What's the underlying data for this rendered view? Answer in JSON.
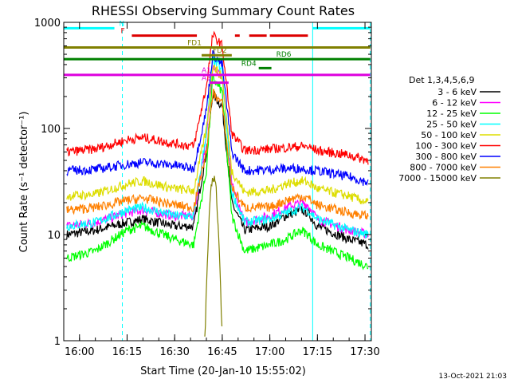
{
  "chart_data": {
    "type": "line",
    "title": "RHESSI Observing Summary Count Rates",
    "xlabel": "Start Time (20-Jan-10 15:55:02)",
    "ylabel": "Count Rate (s⁻¹ detector⁻¹)",
    "y_scale": "log",
    "ylim": [
      1,
      1000
    ],
    "xlim": [
      "15:55:02",
      "17:32:00"
    ],
    "x_ticks": [
      "16:00",
      "16:15",
      "16:30",
      "16:45",
      "17:00",
      "17:15",
      "17:30"
    ],
    "y_ticks": [
      "1",
      "10",
      "100",
      "1000"
    ],
    "legend_title": "Det 1,3,4,5,6,9",
    "legend_position": "right",
    "grid": false,
    "vlines": [
      "15:55:02",
      "16:13:30",
      "17:13:30",
      "17:31:40"
    ],
    "series": [
      {
        "name": "3 - 6 keV",
        "color": "#000000",
        "x": [
          "15:56",
          "16:05",
          "16:15",
          "16:20",
          "16:30",
          "16:36",
          "16:40",
          "16:42",
          "16:45",
          "16:48",
          "16:52",
          "17:00",
          "17:05",
          "17:10",
          "17:12",
          "17:15",
          "17:25",
          "17:31"
        ],
        "y": [
          10,
          11,
          13,
          14,
          12,
          12,
          60,
          210,
          160,
          20,
          11,
          12,
          15,
          17,
          16,
          12,
          9,
          8
        ]
      },
      {
        "name": "6 - 12 keV",
        "color": "#ff00ff",
        "x": [
          "15:56",
          "16:05",
          "16:15",
          "16:20",
          "16:30",
          "16:36",
          "16:40",
          "16:42",
          "16:45",
          "16:48",
          "16:52",
          "17:00",
          "17:05",
          "17:10",
          "17:12",
          "17:15",
          "17:25",
          "17:31"
        ],
        "y": [
          12,
          13,
          16,
          17,
          15,
          15,
          80,
          400,
          300,
          30,
          13,
          15,
          18,
          20,
          19,
          14,
          11,
          10
        ]
      },
      {
        "name": "12 - 25 keV",
        "color": "#00ff00",
        "x": [
          "15:56",
          "16:05",
          "16:15",
          "16:20",
          "16:30",
          "16:36",
          "16:40",
          "16:42",
          "16:45",
          "16:48",
          "16:52",
          "17:00",
          "17:05",
          "17:10",
          "17:12",
          "17:15",
          "17:25",
          "17:31"
        ],
        "y": [
          6,
          7,
          11,
          12,
          9,
          8,
          40,
          300,
          220,
          15,
          7,
          8,
          9,
          11,
          10,
          8,
          6,
          5
        ]
      },
      {
        "name": "25 - 50 keV",
        "color": "#00ffff",
        "x": [
          "15:56",
          "16:05",
          "16:15",
          "16:20",
          "16:30",
          "16:36",
          "16:40",
          "16:42",
          "16:45",
          "16:48",
          "16:52",
          "17:00",
          "17:05",
          "17:10",
          "17:12",
          "17:15",
          "17:25",
          "17:31"
        ],
        "y": [
          12,
          13,
          17,
          18,
          15,
          15,
          90,
          450,
          350,
          25,
          13,
          14,
          16,
          18,
          17,
          14,
          11,
          10
        ]
      },
      {
        "name": "50 - 100 keV",
        "color": "#dddd00",
        "x": [
          "15:56",
          "16:05",
          "16:15",
          "16:20",
          "16:30",
          "16:36",
          "16:40",
          "16:42",
          "16:45",
          "16:48",
          "16:52",
          "17:00",
          "17:05",
          "17:10",
          "17:12",
          "17:15",
          "17:25",
          "17:31"
        ],
        "y": [
          23,
          24,
          30,
          32,
          27,
          26,
          100,
          400,
          300,
          40,
          25,
          26,
          30,
          32,
          31,
          27,
          23,
          20
        ]
      },
      {
        "name": "100 - 300 keV",
        "color": "#ff0000",
        "x": [
          "15:56",
          "16:05",
          "16:15",
          "16:20",
          "16:30",
          "16:36",
          "16:40",
          "16:42",
          "16:45",
          "16:48",
          "16:52",
          "17:00",
          "17:05",
          "17:10",
          "17:12",
          "17:15",
          "17:25",
          "17:31"
        ],
        "y": [
          60,
          64,
          78,
          82,
          72,
          68,
          250,
          760,
          600,
          90,
          62,
          64,
          66,
          68,
          67,
          62,
          56,
          50
        ]
      },
      {
        "name": "300 - 800 keV",
        "color": "#0000ff",
        "x": [
          "15:56",
          "16:05",
          "16:15",
          "16:20",
          "16:30",
          "16:36",
          "16:40",
          "16:42",
          "16:45",
          "16:48",
          "16:52",
          "17:00",
          "17:05",
          "17:10",
          "17:12",
          "17:15",
          "17:25",
          "17:31"
        ],
        "y": [
          40,
          41,
          46,
          48,
          45,
          42,
          150,
          500,
          400,
          60,
          40,
          41,
          42,
          42,
          41,
          40,
          35,
          31
        ]
      },
      {
        "name": "800 - 7000 keV",
        "color": "#ff8000",
        "x": [
          "15:56",
          "16:05",
          "16:15",
          "16:20",
          "16:30",
          "16:36",
          "16:40",
          "16:42",
          "16:45",
          "16:48",
          "16:52",
          "17:00",
          "17:05",
          "17:10",
          "17:12",
          "17:15",
          "17:25",
          "17:31"
        ],
        "y": [
          17,
          18,
          21,
          22,
          19,
          18,
          60,
          220,
          170,
          28,
          18,
          18,
          21,
          23,
          22,
          19,
          16,
          15
        ]
      },
      {
        "name": "7000 - 15000 keV",
        "color": "#808000",
        "x": [
          "16:39:30",
          "16:40",
          "16:41",
          "16:42",
          "16:43",
          "16:44",
          "16:45"
        ],
        "y": [
          1,
          3,
          20,
          35,
          30,
          8,
          1
        ]
      }
    ],
    "flags": [
      {
        "label": "N",
        "color": "#00ffff",
        "label_at": "16:12:30",
        "segments": [
          [
            "15:55:02",
            "16:11:00"
          ],
          [
            "17:13:30",
            "17:31:40"
          ]
        ],
        "level": 880
      },
      {
        "label": "F",
        "color": "#dd0000",
        "label_at": "16:13",
        "segments": [
          [
            "16:16:30",
            "16:37:00"
          ],
          [
            "16:49:00",
            "16:50:30"
          ],
          [
            "16:53:30",
            "16:59:00"
          ],
          [
            "17:00:00",
            "17:12:00"
          ]
        ],
        "level": 750
      },
      {
        "label": "FD1",
        "color": "#808000",
        "label_at": "16:34",
        "segments": [
          [
            "15:55:02",
            "17:31:40"
          ]
        ],
        "level": 580
      },
      {
        "label": "FD2",
        "color": "#808000",
        "label_at": "16:42",
        "segments": [
          [
            "16:38:30",
            "16:48:00"
          ]
        ],
        "level": 490
      },
      {
        "label": "RD6",
        "color": "#008000",
        "label_at": "17:02",
        "segments": [
          [
            "15:55:02",
            "17:31:40"
          ]
        ],
        "level": 450
      },
      {
        "label": "RD4",
        "color": "#008000",
        "label_at": "16:51",
        "segments": [
          [
            "16:56:30",
            "17:00:30"
          ]
        ],
        "level": 370
      },
      {
        "label": "A1",
        "color": "#dd00dd",
        "label_at": "16:38:30",
        "segments": [
          [
            "15:55:02",
            "17:31:40"
          ]
        ],
        "level": 320
      },
      {
        "label": "A3",
        "color": "#dd00dd",
        "label_at": "16:38:30",
        "segments": [
          [
            "16:41:00",
            "16:47:00"
          ]
        ],
        "level": 270
      }
    ],
    "timestamp": "13-Oct-2021 21:03"
  }
}
